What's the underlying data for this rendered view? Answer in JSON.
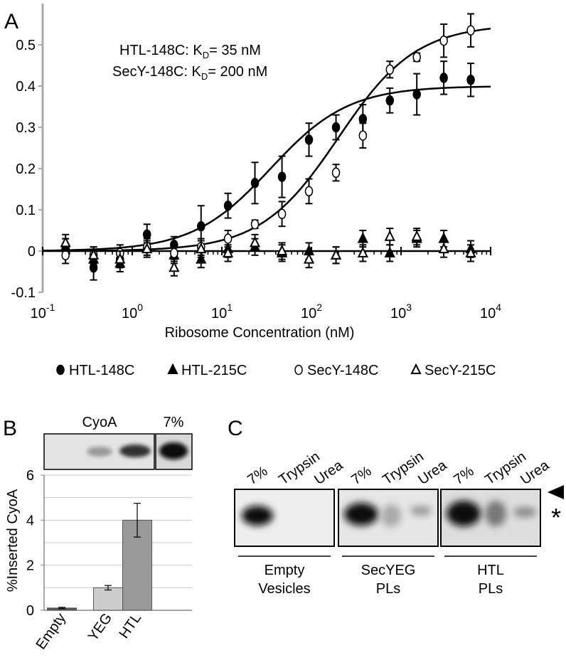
{
  "chart_data": [
    {
      "type": "scatter",
      "panel_label": "A",
      "annotations": [
        {
          "prefix": "HTL-148C: K",
          "subscript": "D",
          "suffix": "= 35 nM"
        },
        {
          "prefix": "SecY-148C: K",
          "subscript": "D",
          "suffix": "= 200 nM"
        }
      ],
      "x_label": "Ribosome Concentration (nM)",
      "log_x": true,
      "xlim": [
        0.1,
        10000
      ],
      "xticks": [
        {
          "value": 0.1,
          "label": "10",
          "exponent": "-1"
        },
        {
          "value": 1,
          "label": "10",
          "exponent": "0"
        },
        {
          "value": 10,
          "label": "10",
          "exponent": "1"
        },
        {
          "value": 100,
          "label": "10",
          "exponent": "2"
        },
        {
          "value": 1000,
          "label": "10",
          "exponent": "3"
        },
        {
          "value": 10000,
          "label": "10",
          "exponent": "4"
        }
      ],
      "ylim": [
        -0.1,
        0.6
      ],
      "yticks": [
        -0.1,
        0,
        0.1,
        0.2,
        0.3,
        0.4,
        0.5
      ],
      "x": [
        0.18,
        0.37,
        0.73,
        1.46,
        2.93,
        5.86,
        11.7,
        23.4,
        46.9,
        93.8,
        188,
        375,
        750,
        1500,
        3000,
        6000
      ],
      "series": [
        {
          "name": "HTL-148C",
          "marker": "circle",
          "filled": true,
          "color": "#000000",
          "values": [
            0.01,
            -0.04,
            -0.02,
            0.04,
            0.015,
            0.06,
            0.11,
            0.165,
            0.18,
            0.27,
            0.3,
            0.32,
            0.365,
            0.38,
            0.42,
            0.415
          ],
          "errors": [
            0.02,
            0.03,
            0.02,
            0.025,
            0.02,
            0.05,
            0.03,
            0.05,
            0.05,
            0.04,
            0.03,
            0.035,
            0.03,
            0.05,
            0.04,
            0.04
          ],
          "fit": {
            "kd": 35,
            "bmax": 0.4
          }
        },
        {
          "name": "HTL-215C",
          "marker": "triangle",
          "filled": true,
          "color": "#000000",
          "values": [
            0.01,
            -0.02,
            -0.03,
            0.01,
            -0.01,
            -0.02,
            0.005,
            0.01,
            -0.005,
            0,
            -0.01,
            0.03,
            -0.005,
            0.03,
            0.03,
            0.005
          ],
          "errors": [
            0.02,
            0.02,
            0.02,
            0.02,
            0.02,
            0.02,
            0.02,
            0.02,
            0.02,
            0.02,
            0.02,
            0.02,
            0.02,
            0.02,
            0.02,
            0.02
          ]
        },
        {
          "name": "SecY-148C",
          "marker": "circle",
          "filled": false,
          "color": "#000000",
          "values": [
            -0.01,
            -0.01,
            -0.005,
            0.01,
            -0.005,
            0.01,
            0.03,
            0.065,
            0.09,
            0.145,
            0.19,
            0.28,
            0.44,
            0.47,
            0.51,
            0.535
          ],
          "errors": [
            0.02,
            0.02,
            0.02,
            0.01,
            0.02,
            0.02,
            0.02,
            0.01,
            0.03,
            0.03,
            0.02,
            0.03,
            0.02,
            0.01,
            0.04,
            0.04
          ],
          "fit": {
            "kd": 200,
            "bmax": 0.55
          }
        },
        {
          "name": "SecY-215C",
          "marker": "triangle",
          "filled": false,
          "color": "#000000",
          "values": [
            0.02,
            -0.01,
            -0.02,
            0.005,
            -0.04,
            0.005,
            -0.005,
            0.02,
            0,
            -0.02,
            -0.01,
            -0.005,
            0.035,
            0.035,
            0.005,
            -0.005
          ],
          "errors": [
            0.02,
            0.02,
            0.02,
            0.02,
            0.02,
            0.02,
            0.02,
            0.02,
            0.02,
            0.02,
            0.02,
            0.02,
            0.02,
            0.02,
            0.02,
            0.02
          ]
        }
      ]
    },
    {
      "type": "bar",
      "panel_label": "B",
      "y_label": "%Inserted CyoA",
      "gel_labels": [
        "CyoA",
        "7%"
      ],
      "categories": [
        "Empty",
        "YEG",
        "HTL"
      ],
      "values": [
        0.1,
        1,
        4
      ],
      "errors": [
        0.03,
        0.1,
        0.75
      ],
      "colors": [
        "#555555",
        "#cccccc",
        "#999999"
      ],
      "ylim": [
        0,
        6
      ],
      "yticks": [
        0,
        2,
        4,
        6
      ],
      "gridlines": [
        1,
        2,
        3,
        4,
        5,
        6
      ]
    }
  ],
  "panel_c": {
    "panel_label": "C",
    "band_marker": "*",
    "gels": [
      {
        "lanes": [
          "7%",
          "Trypsin",
          "Urea"
        ],
        "group": [
          "Empty",
          "Vesicles"
        ]
      },
      {
        "lanes": [
          "7%",
          "Trypsin",
          "Urea"
        ],
        "group": [
          "SecYEG",
          "PLs"
        ]
      },
      {
        "lanes": [
          "7%",
          "Trypsin",
          "Urea"
        ],
        "group": [
          "HTL",
          "PLs"
        ]
      }
    ]
  }
}
